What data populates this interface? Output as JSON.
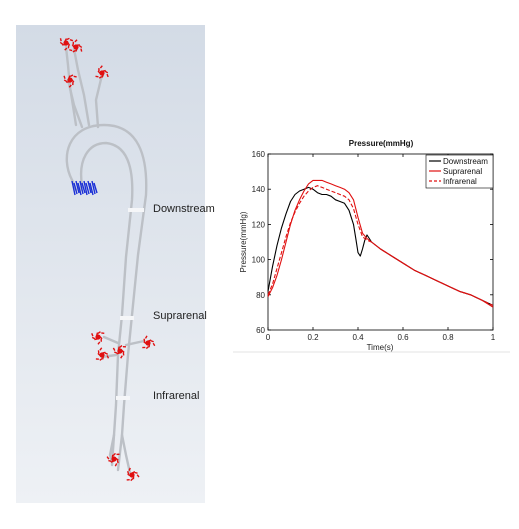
{
  "simulation": {
    "labels": [
      {
        "key": "downstream",
        "text": "Downstream"
      },
      {
        "key": "suprarenal",
        "text": "Suprarenal"
      },
      {
        "key": "infrarenal",
        "text": "Infrarenal"
      }
    ],
    "colors": {
      "outlet": "#e01010",
      "inlet": "#1a2fd6",
      "vessel": "#bcc0c6"
    }
  },
  "chart_data": {
    "type": "line",
    "title": "Pressure(mmHg)",
    "xlabel": "Time(s)",
    "ylabel": "Pressure(mmHg)",
    "xlim": [
      0,
      1
    ],
    "ylim": [
      60,
      160
    ],
    "xticks": [
      "0",
      "0.2",
      "0.4",
      "0.6",
      "0.8",
      "1"
    ],
    "yticks": [
      "60",
      "80",
      "100",
      "120",
      "140",
      "160"
    ],
    "legend_position": "top-right",
    "grid": false,
    "series": [
      {
        "name": "Downstream",
        "color": "#000000",
        "dash": "solid",
        "x": [
          0,
          0.02,
          0.04,
          0.06,
          0.08,
          0.1,
          0.12,
          0.14,
          0.16,
          0.18,
          0.2,
          0.22,
          0.24,
          0.26,
          0.28,
          0.3,
          0.32,
          0.34,
          0.36,
          0.38,
          0.39,
          0.4,
          0.41,
          0.42,
          0.43,
          0.44,
          0.45,
          0.46,
          0.48,
          0.5,
          0.55,
          0.6,
          0.65,
          0.7,
          0.75,
          0.8,
          0.85,
          0.9,
          0.95,
          1.0
        ],
        "y": [
          82,
          96,
          108,
          118,
          126,
          133,
          137,
          139,
          140,
          141,
          140,
          138,
          137,
          137,
          136,
          134,
          133,
          132,
          128,
          120,
          112,
          104,
          102,
          106,
          111,
          114,
          112,
          110,
          108,
          106,
          102,
          98,
          94,
          91,
          88,
          85,
          82,
          80,
          77,
          74
        ]
      },
      {
        "name": "Suprarenal",
        "color": "#e01010",
        "dash": "solid",
        "x": [
          0,
          0.02,
          0.04,
          0.06,
          0.08,
          0.1,
          0.12,
          0.14,
          0.16,
          0.18,
          0.2,
          0.22,
          0.24,
          0.26,
          0.28,
          0.3,
          0.32,
          0.34,
          0.36,
          0.38,
          0.4,
          0.42,
          0.44,
          0.46,
          0.48,
          0.5,
          0.55,
          0.6,
          0.65,
          0.7,
          0.75,
          0.8,
          0.85,
          0.9,
          0.95,
          1.0
        ],
        "y": [
          79,
          84,
          91,
          100,
          110,
          120,
          128,
          134,
          139,
          143,
          145,
          145,
          145,
          144,
          143,
          142,
          141,
          140,
          138,
          134,
          124,
          115,
          112,
          110,
          108,
          106,
          102,
          98,
          94,
          91,
          88,
          85,
          82,
          80,
          77,
          73
        ]
      },
      {
        "name": "Infrarenal",
        "color": "#e01010",
        "dash": "dashed",
        "x": [
          0,
          0.02,
          0.04,
          0.06,
          0.08,
          0.1,
          0.12,
          0.14,
          0.16,
          0.18,
          0.2,
          0.22,
          0.24,
          0.26,
          0.28,
          0.3,
          0.32,
          0.34,
          0.36,
          0.38,
          0.4,
          0.42,
          0.44,
          0.46,
          0.48,
          0.5,
          0.55,
          0.6,
          0.65,
          0.7,
          0.75,
          0.8,
          0.85,
          0.9,
          0.95,
          1.0
        ],
        "y": [
          80,
          86,
          95,
          104,
          113,
          121,
          127,
          132,
          136,
          139,
          141,
          142,
          141,
          140,
          139,
          138,
          137,
          136,
          134,
          129,
          120,
          113,
          111,
          110,
          108,
          106,
          102,
          98,
          94,
          91,
          88,
          85,
          82,
          80,
          77,
          74
        ]
      }
    ]
  }
}
